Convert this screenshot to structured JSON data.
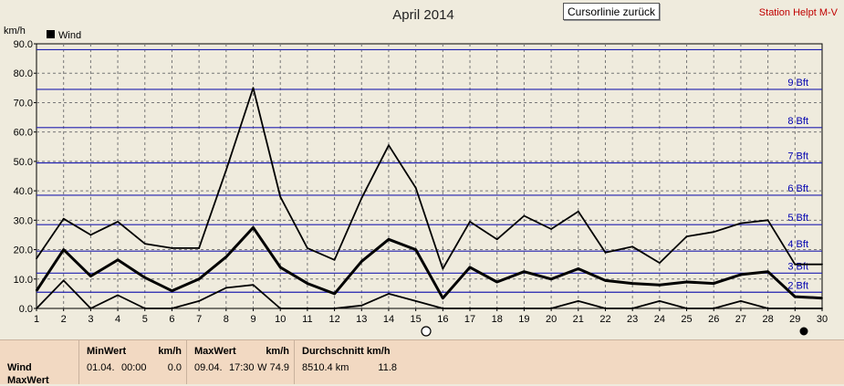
{
  "station": "Station Helpt M-V",
  "cursor_button": "Cursorlinie zurück",
  "chart_data": {
    "type": "line",
    "title": "April 2014",
    "ylabel": "km/h",
    "ylim": [
      0,
      90
    ],
    "yticks": [
      "0.0",
      "10.0",
      "20.0",
      "30.0",
      "40.0",
      "50.0",
      "60.0",
      "70.0",
      "80.0",
      "90.0"
    ],
    "x": [
      1,
      2,
      3,
      4,
      5,
      6,
      7,
      8,
      9,
      10,
      11,
      12,
      13,
      14,
      15,
      16,
      17,
      18,
      19,
      20,
      21,
      22,
      23,
      24,
      25,
      26,
      27,
      28,
      29,
      30
    ],
    "legend": {
      "position": "top-left",
      "label": "Wind",
      "swatch": "#000000"
    },
    "series": [
      {
        "role": "max",
        "values": [
          17,
          30.5,
          25,
          29.5,
          22,
          20.5,
          20.5,
          47,
          75,
          38,
          20.5,
          16.5,
          37.5,
          55.5,
          41,
          13.5,
          29.5,
          23.5,
          31.5,
          27,
          33,
          19,
          21,
          15.5,
          24.5,
          26,
          29,
          30,
          15,
          15
        ]
      },
      {
        "role": "avg",
        "values": [
          6,
          20,
          11,
          16.5,
          10.5,
          6,
          10,
          17.5,
          27.5,
          14,
          8.5,
          5,
          16,
          23.5,
          20,
          3.5,
          14,
          9,
          12.5,
          10,
          13.5,
          9.5,
          8.5,
          8,
          9,
          8.5,
          11.5,
          12.5,
          4,
          3.5
        ]
      },
      {
        "role": "min",
        "values": [
          0,
          9.5,
          0,
          4.5,
          0,
          0,
          2.5,
          7,
          8,
          0,
          0,
          0,
          1,
          5,
          2.5,
          0,
          0,
          0,
          0,
          0,
          2.5,
          0,
          0,
          2.5,
          0,
          0,
          2.5,
          0,
          0,
          0
        ]
      }
    ],
    "beaufort": [
      {
        "label": "2 Bft",
        "value": 5.5
      },
      {
        "label": "3 Bft",
        "value": 12
      },
      {
        "label": "4 Bft",
        "value": 19.5
      },
      {
        "label": "5 Bft",
        "value": 28.5
      },
      {
        "label": "6 Bft",
        "value": 38.5
      },
      {
        "label": "7 Bft",
        "value": 49.5
      },
      {
        "label": "8 Bft",
        "value": 61.5
      },
      {
        "label": "9 Bft",
        "value": 74.5
      },
      {
        "label": "",
        "value": 88
      }
    ],
    "grid": true
  },
  "stats": {
    "row_label": "Wind",
    "row2_label": "MaxWert",
    "min": {
      "header": "MinWert",
      "unit": "km/h",
      "date": "01.04.",
      "time": "00:00",
      "value": "0.0"
    },
    "max": {
      "header": "MaxWert",
      "unit": "km/h",
      "date": "09.04.",
      "time": "17:30",
      "dir_value": "W 74.9"
    },
    "avg": {
      "header": "Durchschnitt km/h",
      "distance": "8510.4 km",
      "value": "11.8"
    }
  }
}
